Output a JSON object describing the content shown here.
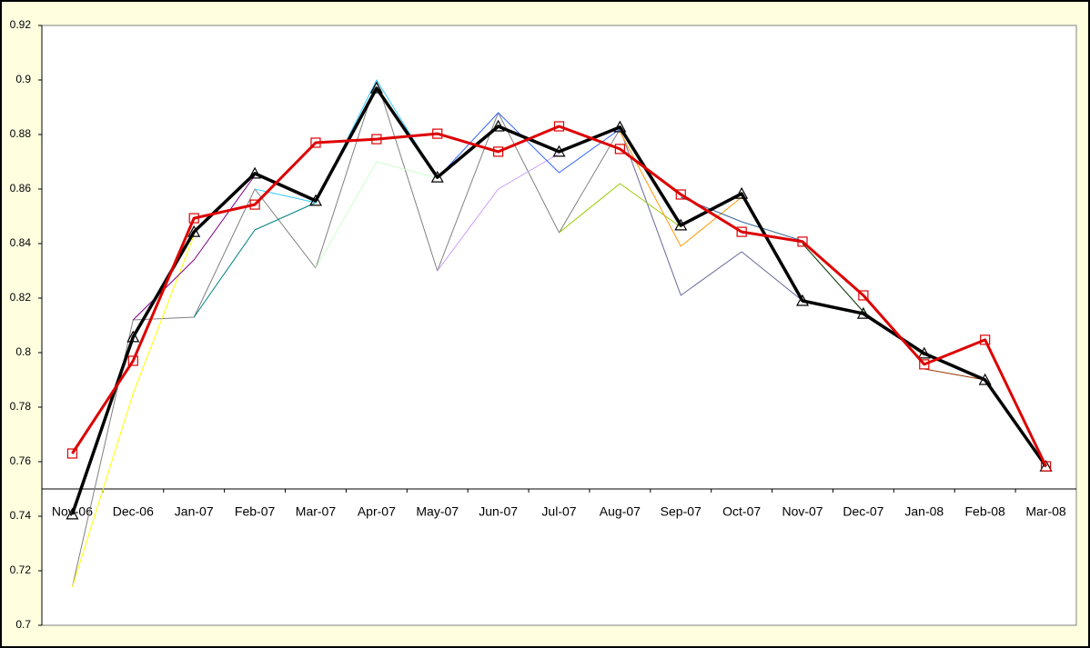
{
  "chart_data": {
    "type": "line",
    "categories": [
      "Nov-06",
      "Dec-06",
      "Jan-07",
      "Feb-07",
      "Mar-07",
      "Apr-07",
      "May-07",
      "Jun-07",
      "Jul-07",
      "Aug-07",
      "Sep-07",
      "Oct-07",
      "Nov-07",
      "Dec-07",
      "Jan-08",
      "Feb-08",
      "Mar-08"
    ],
    "ylim": [
      0.7,
      0.92
    ],
    "yticks": [
      0.7,
      0.72,
      0.74,
      0.76,
      0.78,
      0.8,
      0.82,
      0.84,
      0.86,
      0.88,
      0.9,
      0.92
    ],
    "category_axis_at": 0.75,
    "series": [
      {
        "color": "#808080",
        "width": 1,
        "values": [
          0.714,
          0.812,
          0.813,
          0.86,
          0.831,
          0.9,
          0.83,
          0.888,
          0.844,
          0.882,
          null,
          null,
          null,
          null,
          null,
          null,
          null
        ]
      },
      {
        "color": "#666699",
        "width": 1,
        "values": [
          null,
          null,
          null,
          null,
          null,
          null,
          null,
          null,
          null,
          0.882,
          0.821,
          0.837,
          0.819,
          null,
          null,
          null,
          null
        ]
      },
      {
        "color": "#ffff00",
        "width": 1,
        "values": [
          0.714,
          0.785,
          0.843,
          null,
          null,
          null,
          null,
          null,
          null,
          null,
          null,
          null,
          null,
          null,
          null,
          null,
          null
        ]
      },
      {
        "color": "#800080",
        "width": 1,
        "values": [
          null,
          0.812,
          0.834,
          0.865,
          null,
          null,
          null,
          null,
          null,
          null,
          null,
          null,
          null,
          null,
          null,
          null,
          null
        ]
      },
      {
        "color": "#008080",
        "width": 1,
        "values": [
          null,
          null,
          0.813,
          0.845,
          0.855,
          null,
          null,
          null,
          null,
          null,
          null,
          null,
          null,
          null,
          null,
          null,
          null
        ]
      },
      {
        "color": "#33ccff",
        "width": 1,
        "values": [
          null,
          null,
          null,
          0.86,
          0.855,
          0.9,
          0.864,
          null,
          null,
          null,
          null,
          null,
          null,
          null,
          null,
          null,
          null
        ]
      },
      {
        "color": "#ccffcc",
        "width": 1,
        "values": [
          null,
          null,
          null,
          null,
          0.831,
          0.87,
          0.864,
          null,
          null,
          null,
          null,
          null,
          null,
          null,
          null,
          null,
          null
        ]
      },
      {
        "color": "#cc99ff",
        "width": 1,
        "values": [
          null,
          null,
          null,
          null,
          null,
          null,
          0.83,
          0.86,
          0.873,
          null,
          null,
          null,
          null,
          null,
          null,
          null,
          null
        ]
      },
      {
        "color": "#3366ff",
        "width": 1,
        "values": [
          null,
          null,
          null,
          null,
          null,
          null,
          0.864,
          0.888,
          0.866,
          0.882,
          null,
          null,
          null,
          null,
          null,
          null,
          null
        ]
      },
      {
        "color": "#99cc00",
        "width": 1,
        "values": [
          null,
          null,
          null,
          null,
          null,
          null,
          null,
          null,
          0.844,
          0.862,
          0.846,
          null,
          null,
          null,
          null,
          null,
          null
        ]
      },
      {
        "color": "#ff9900",
        "width": 1,
        "values": [
          null,
          null,
          null,
          null,
          null,
          null,
          null,
          null,
          null,
          0.881,
          0.839,
          0.857,
          null,
          null,
          null,
          null,
          null
        ]
      },
      {
        "color": "#336699",
        "width": 1,
        "values": [
          null,
          null,
          null,
          null,
          null,
          null,
          null,
          null,
          null,
          null,
          0.857,
          0.848,
          0.841,
          null,
          null,
          null,
          null
        ]
      },
      {
        "color": "#003300",
        "width": 1,
        "values": [
          null,
          null,
          null,
          null,
          null,
          null,
          null,
          null,
          null,
          null,
          null,
          null,
          0.84,
          0.815,
          0.799,
          null,
          null
        ]
      },
      {
        "color": "#993300",
        "width": 1,
        "values": [
          null,
          null,
          null,
          null,
          null,
          null,
          null,
          null,
          null,
          null,
          null,
          null,
          null,
          null,
          0.794,
          0.79,
          0.758
        ]
      },
      {
        "color": "#000000",
        "width": 3.5,
        "marker": "triangle",
        "values": [
          0.7407,
          0.8057,
          0.8443,
          0.8657,
          0.8557,
          0.897,
          0.8643,
          0.883,
          0.8737,
          0.8827,
          0.8467,
          0.8583,
          0.819,
          0.8143,
          0.7997,
          0.79,
          0.7583
        ]
      },
      {
        "color": "#dd0000",
        "width": 3,
        "marker": "square",
        "values": [
          0.763,
          0.797,
          0.8493,
          0.8543,
          0.877,
          0.8783,
          0.8803,
          0.8737,
          0.883,
          0.8747,
          0.858,
          0.8443,
          0.8407,
          0.821,
          0.7957,
          0.8047,
          0.7583
        ]
      }
    ]
  }
}
